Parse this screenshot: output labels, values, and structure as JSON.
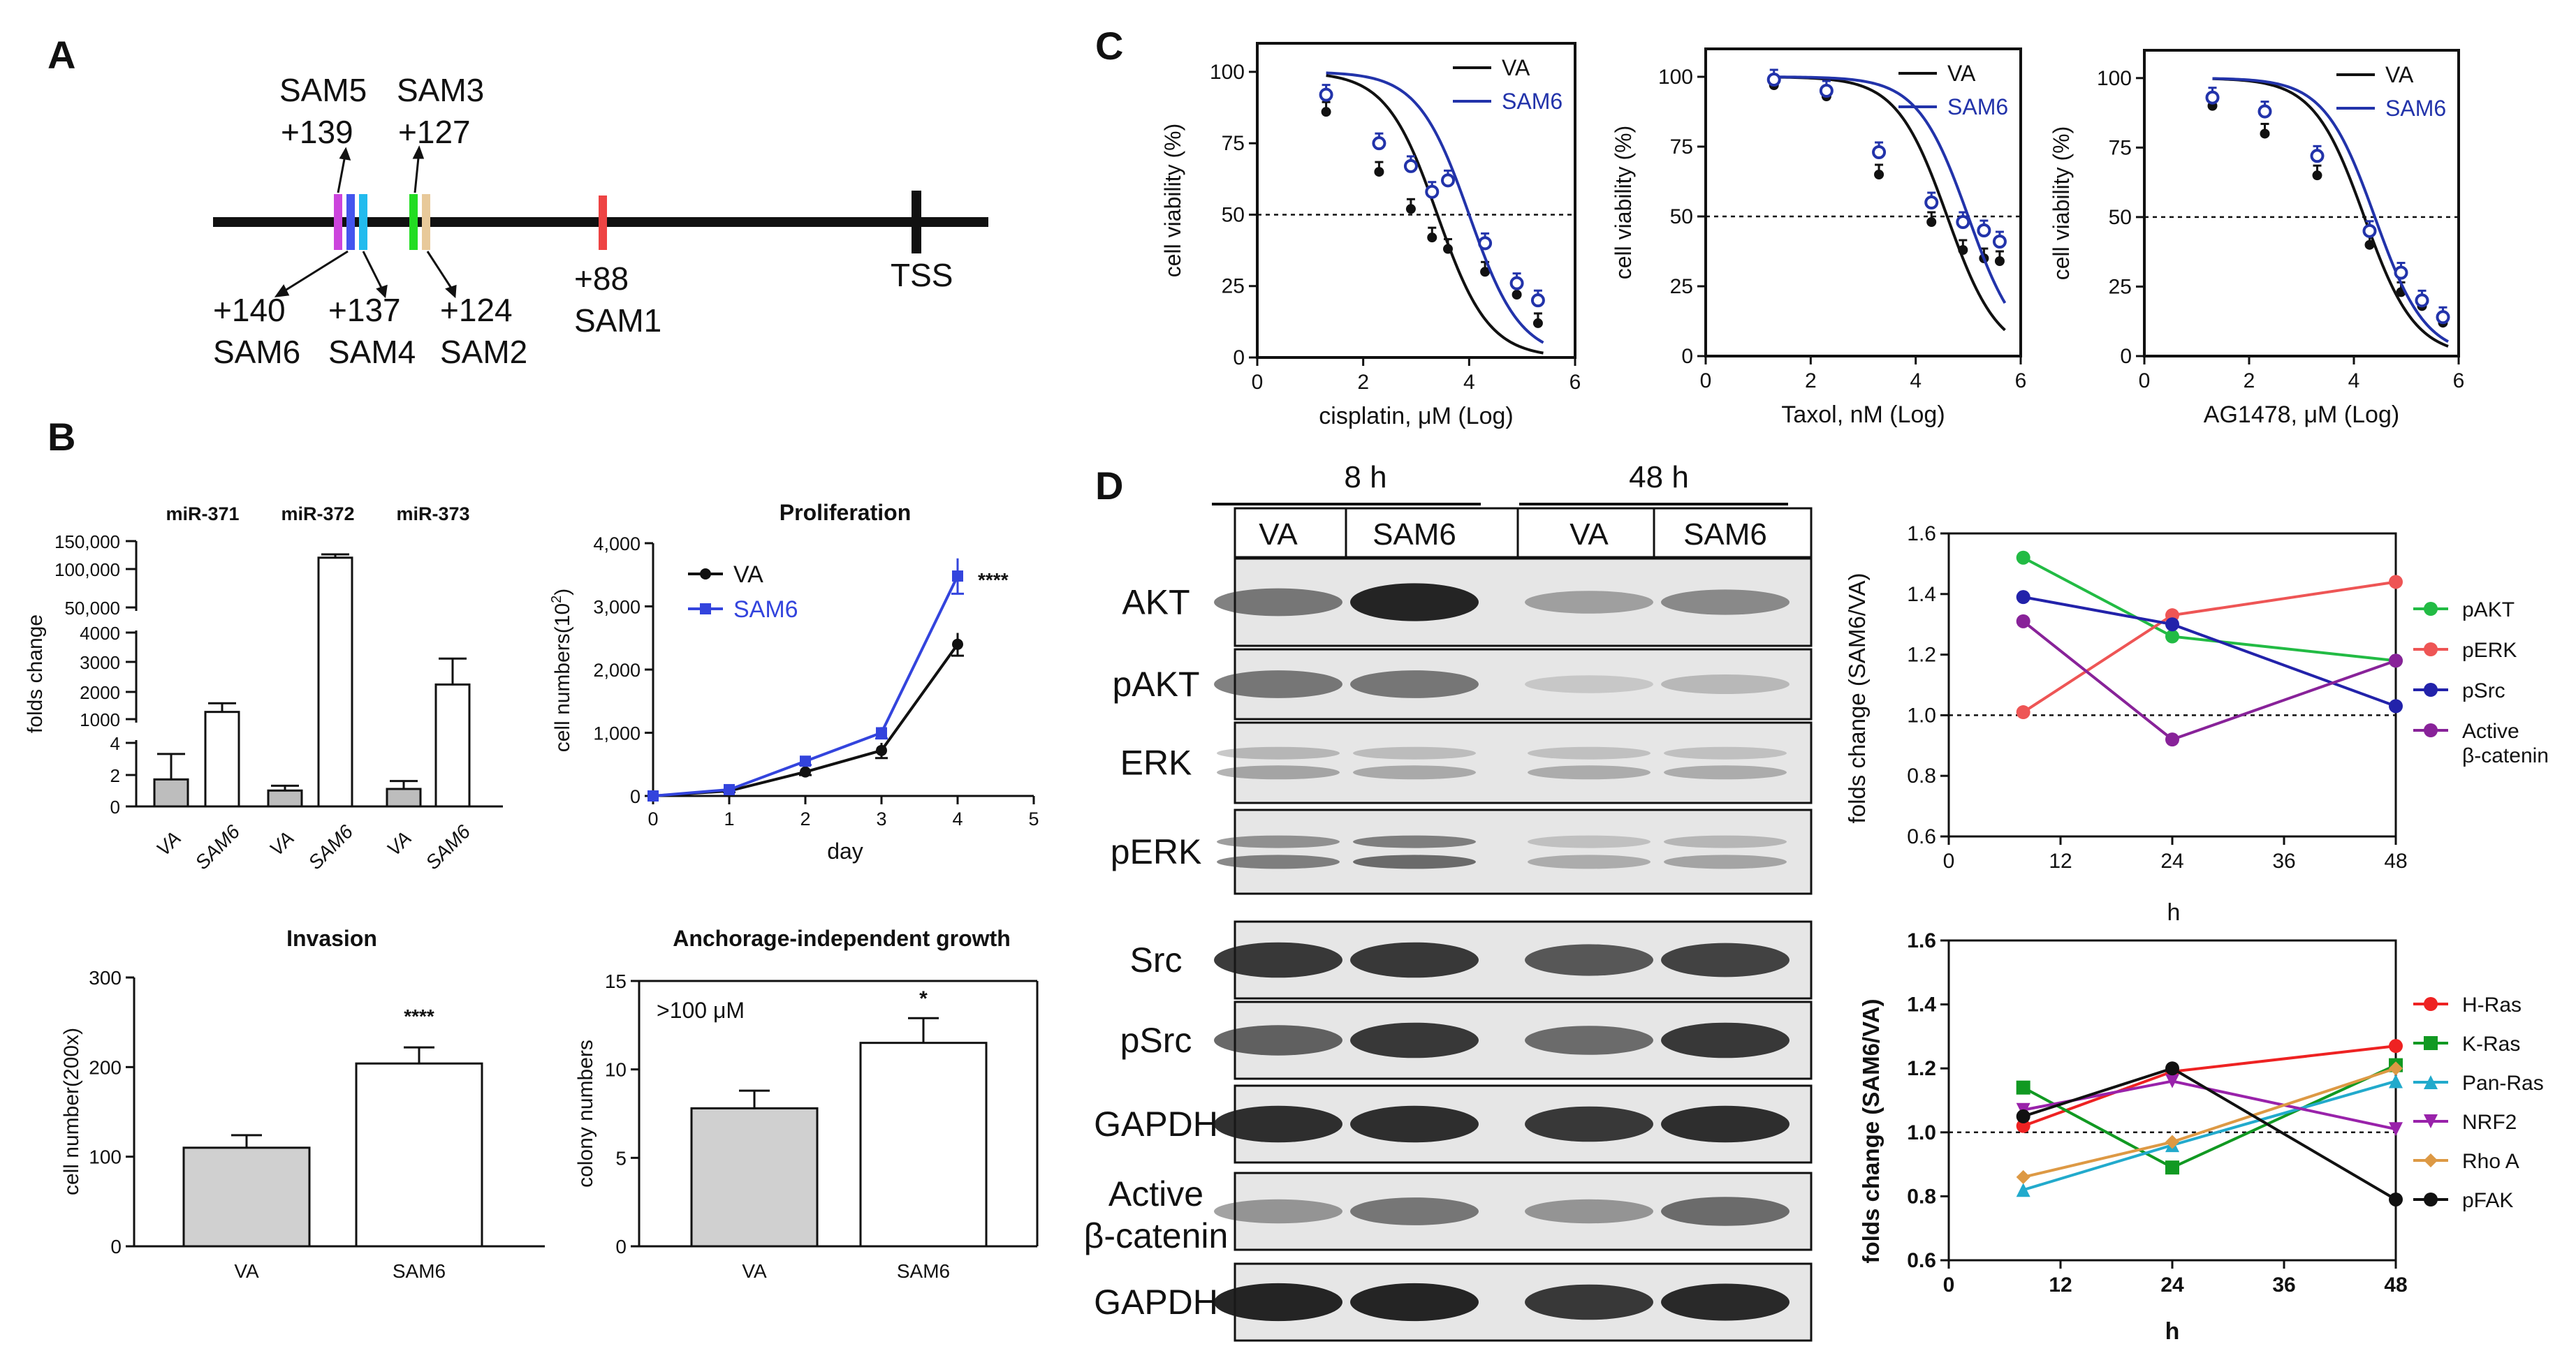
{
  "figure": {
    "panels": [
      {
        "id": "A",
        "label": "A"
      },
      {
        "id": "B",
        "label": "B"
      },
      {
        "id": "C",
        "label": "C"
      },
      {
        "id": "D",
        "label": "D"
      }
    ]
  },
  "panel_a": {
    "sites": [
      {
        "id": "SAM5",
        "name": "SAM5",
        "pos": "+139",
        "color": "#cc44dd"
      },
      {
        "id": "SAM6",
        "name": "SAM6",
        "pos": "+140",
        "color": "#4455ee"
      },
      {
        "id": "SAM4",
        "name": "SAM4",
        "pos": "+137",
        "color": "#22bbee"
      },
      {
        "id": "SAM3",
        "name": "SAM3",
        "pos": "+127",
        "color": "#22dd22"
      },
      {
        "id": "SAM2",
        "name": "SAM2",
        "pos": "+124",
        "color": "#e8c99a"
      },
      {
        "id": "SAM1",
        "name": "SAM1",
        "pos": "+88",
        "color": "#ee4444"
      }
    ],
    "tss_label": "TSS"
  },
  "panel_b": {
    "folds": {
      "ylabel": "folds change",
      "groups": [
        "miR-371",
        "miR-372",
        "miR-373"
      ],
      "categories": [
        "VA",
        "SAM6",
        "VA",
        "SAM6",
        "VA",
        "SAM6"
      ],
      "ticks_top": [
        "150,000",
        "100,000",
        "50,000"
      ],
      "ticks_mid": [
        "4000",
        "3000",
        "2000",
        "1000"
      ],
      "ticks_low": [
        "4",
        "2",
        "0"
      ]
    },
    "prolif": {
      "title": "Proliferation",
      "ylabel": "cell numbers(10",
      "ylabel_sup": "2",
      "ylabel_end": ")",
      "xlabel": "day",
      "sig": "****",
      "yticks": [
        "0",
        "1,000",
        "2,000",
        "3,000",
        "4,000"
      ],
      "xticks": [
        "0",
        "1",
        "2",
        "3",
        "4",
        "5"
      ]
    },
    "invasion": {
      "title": "Invasion",
      "ylabel": "cell number(200x)",
      "sig": "****",
      "yticks": [
        "0",
        "100",
        "200",
        "300"
      ]
    },
    "anchorage": {
      "title": "Anchorage-independent growth",
      "ylabel": "colony numbers",
      "note": ">100 μM",
      "sig": "*",
      "yticks": [
        "0",
        "5",
        "10",
        "15"
      ]
    }
  },
  "panel_c": {
    "ylabel": "cell viability (%)",
    "yticks": [
      "0",
      "25",
      "50",
      "75",
      "100"
    ],
    "xticks": [
      "0",
      "2",
      "4",
      "6"
    ],
    "legend": [
      "VA",
      "SAM6"
    ],
    "colors": {
      "VA": "#111111",
      "SAM6": "#2233aa"
    }
  },
  "panel_d": {
    "times": [
      "8 h",
      "48 h"
    ],
    "lanes": [
      "VA",
      "SAM6",
      "VA",
      "SAM6"
    ],
    "blots": [
      {
        "label": "AKT"
      },
      {
        "label": "pAKT"
      },
      {
        "label": "ERK"
      },
      {
        "label": "pERK"
      },
      {
        "label": "Src"
      },
      {
        "label": "pSrc"
      },
      {
        "label": "GAPDH"
      },
      {
        "label": "Active",
        "label2": "β-catenin"
      },
      {
        "label": "GAPDH"
      }
    ],
    "fold_chart_ylabel": "folds change (SAM6/VA)",
    "fold_chart_xlabel": "h",
    "fold_yticks_top": [
      "0.6",
      "0.8",
      "1.0",
      "1.2",
      "1.4",
      "1.6"
    ],
    "fold_yticks_bot": [
      "0.6",
      "0.8",
      "1.0",
      "1.2",
      "1.4",
      "1.6"
    ],
    "fold_xticks": [
      "0",
      "12",
      "24",
      "36",
      "48"
    ]
  },
  "chart_data": [
    {
      "type": "bar",
      "id": "mir-fold",
      "groups": [
        "miR-371",
        "miR-372",
        "miR-373"
      ],
      "categories": [
        "VA",
        "SAM6",
        "VA",
        "SAM6",
        "VA",
        "SAM6"
      ],
      "values": [
        1.7,
        1250,
        1.0,
        125000,
        1.1,
        2200
      ],
      "errors": [
        1.6,
        300,
        0.3,
        5000,
        0.5,
        900
      ],
      "ylabel": "folds change",
      "yscale": "broken"
    },
    {
      "type": "line",
      "id": "proliferation",
      "title": "Proliferation",
      "xlabel": "day",
      "ylabel": "cell numbers(10^2)",
      "x": [
        0,
        1,
        2,
        3,
        4
      ],
      "xlim": [
        0,
        5
      ],
      "ylim": [
        0,
        4000
      ],
      "series": [
        {
          "name": "VA",
          "color": "#111111",
          "values": [
            0,
            80,
            380,
            720,
            2400
          ],
          "errors": [
            0,
            20,
            50,
            120,
            180
          ]
        },
        {
          "name": "SAM6",
          "color": "#3344dd",
          "values": [
            0,
            100,
            550,
            1000,
            3480
          ],
          "errors": [
            0,
            20,
            60,
            90,
            280
          ]
        }
      ],
      "annotation": "****"
    },
    {
      "type": "bar",
      "id": "invasion",
      "title": "Invasion",
      "ylabel": "cell number(200x)",
      "categories": [
        "VA",
        "SAM6"
      ],
      "values": [
        110,
        204
      ],
      "errors": [
        14,
        18
      ],
      "ylim": [
        0,
        300
      ],
      "annotation": "****"
    },
    {
      "type": "bar",
      "id": "anchorage",
      "title": "Anchorage-independent growth",
      "ylabel": "colony numbers",
      "categories": [
        "VA",
        "SAM6"
      ],
      "values": [
        7.8,
        11.5
      ],
      "errors": [
        1.0,
        1.4
      ],
      "ylim": [
        0,
        15
      ],
      "annotation": "*",
      "note": ">100 μM"
    },
    {
      "type": "line",
      "id": "cisplatin",
      "xlabel": "cisplatin, μM (Log)",
      "ylabel": "cell viability (%)",
      "xlim": [
        0,
        6
      ],
      "ylim": [
        0,
        110
      ],
      "x": [
        1.3,
        2.3,
        2.9,
        3.3,
        3.6,
        4.3,
        4.9,
        5.3
      ],
      "series": [
        {
          "name": "VA",
          "color": "#111111",
          "values": [
            86,
            65,
            52,
            42,
            38,
            30,
            22,
            12
          ]
        },
        {
          "name": "SAM6",
          "color": "#2233aa",
          "values": [
            92,
            75,
            67,
            58,
            62,
            40,
            26,
            20
          ]
        }
      ],
      "fit_ic50": {
        "VA": 3.4,
        "SAM6": 4.0
      }
    },
    {
      "type": "line",
      "id": "taxol",
      "xlabel": "Taxol, nM (Log)",
      "ylabel": "cell viability (%)",
      "xlim": [
        0,
        6
      ],
      "ylim": [
        0,
        110
      ],
      "x": [
        1.3,
        2.3,
        3.3,
        4.3,
        4.9,
        5.3,
        5.6
      ],
      "series": [
        {
          "name": "VA",
          "color": "#111111",
          "values": [
            97,
            93,
            65,
            48,
            38,
            35,
            34
          ]
        },
        {
          "name": "SAM6",
          "color": "#2233aa",
          "values": [
            99,
            95,
            73,
            55,
            48,
            45,
            41
          ]
        }
      ],
      "fit_ic50": {
        "VA": 4.6,
        "SAM6": 5.0
      }
    },
    {
      "type": "line",
      "id": "ag1478",
      "xlabel": "AG1478, μM (Log)",
      "ylabel": "cell viability (%)",
      "xlim": [
        0,
        6
      ],
      "ylim": [
        0,
        110
      ],
      "x": [
        1.3,
        2.3,
        3.3,
        4.3,
        4.9,
        5.3,
        5.7
      ],
      "series": [
        {
          "name": "VA",
          "color": "#111111",
          "values": [
            90,
            80,
            65,
            40,
            23,
            18,
            12
          ]
        },
        {
          "name": "SAM6",
          "color": "#2233aa",
          "values": [
            93,
            88,
            72,
            45,
            30,
            20,
            14
          ]
        }
      ],
      "fit_ic50": {
        "VA": 4.2,
        "SAM6": 4.4
      }
    },
    {
      "type": "line",
      "id": "fold-kinase",
      "xlabel": "h",
      "ylabel": "folds change (SAM6/VA)",
      "x": [
        8,
        24,
        48
      ],
      "xlim": [
        0,
        48
      ],
      "ylim": [
        0.6,
        1.6
      ],
      "reference": 1.0,
      "series": [
        {
          "name": "pAKT",
          "color": "#22bb44",
          "values": [
            1.52,
            1.26,
            1.18
          ]
        },
        {
          "name": "pERK",
          "color": "#ee5555",
          "values": [
            1.01,
            1.33,
            1.44
          ]
        },
        {
          "name": "pSrc",
          "color": "#2222aa",
          "values": [
            1.39,
            1.3,
            1.03
          ]
        },
        {
          "name": "Active β-catenin",
          "color": "#882299",
          "values": [
            1.31,
            0.92,
            1.18
          ]
        }
      ]
    },
    {
      "type": "line",
      "id": "fold-ras",
      "xlabel": "h",
      "ylabel": "folds change (SAM6/VA)",
      "x": [
        8,
        24,
        48
      ],
      "xlim": [
        0,
        48
      ],
      "ylim": [
        0.6,
        1.6
      ],
      "reference": 1.0,
      "series": [
        {
          "name": "H-Ras",
          "color": "#ee2222",
          "marker": "circle",
          "values": [
            1.02,
            1.19,
            1.27
          ]
        },
        {
          "name": "K-Ras",
          "color": "#119922",
          "marker": "square",
          "values": [
            1.14,
            0.89,
            1.21
          ]
        },
        {
          "name": "Pan-Ras",
          "color": "#22aacc",
          "marker": "triangle",
          "values": [
            0.82,
            0.96,
            1.16
          ]
        },
        {
          "name": "NRF2",
          "color": "#9922aa",
          "marker": "tri-down",
          "values": [
            1.07,
            1.16,
            1.01
          ]
        },
        {
          "name": "Rho A",
          "color": "#dd9944",
          "marker": "diamond",
          "values": [
            0.86,
            0.97,
            1.2
          ]
        },
        {
          "name": "pFAK",
          "color": "#111111",
          "marker": "circle",
          "values": [
            1.05,
            1.2,
            0.79
          ]
        }
      ]
    }
  ]
}
